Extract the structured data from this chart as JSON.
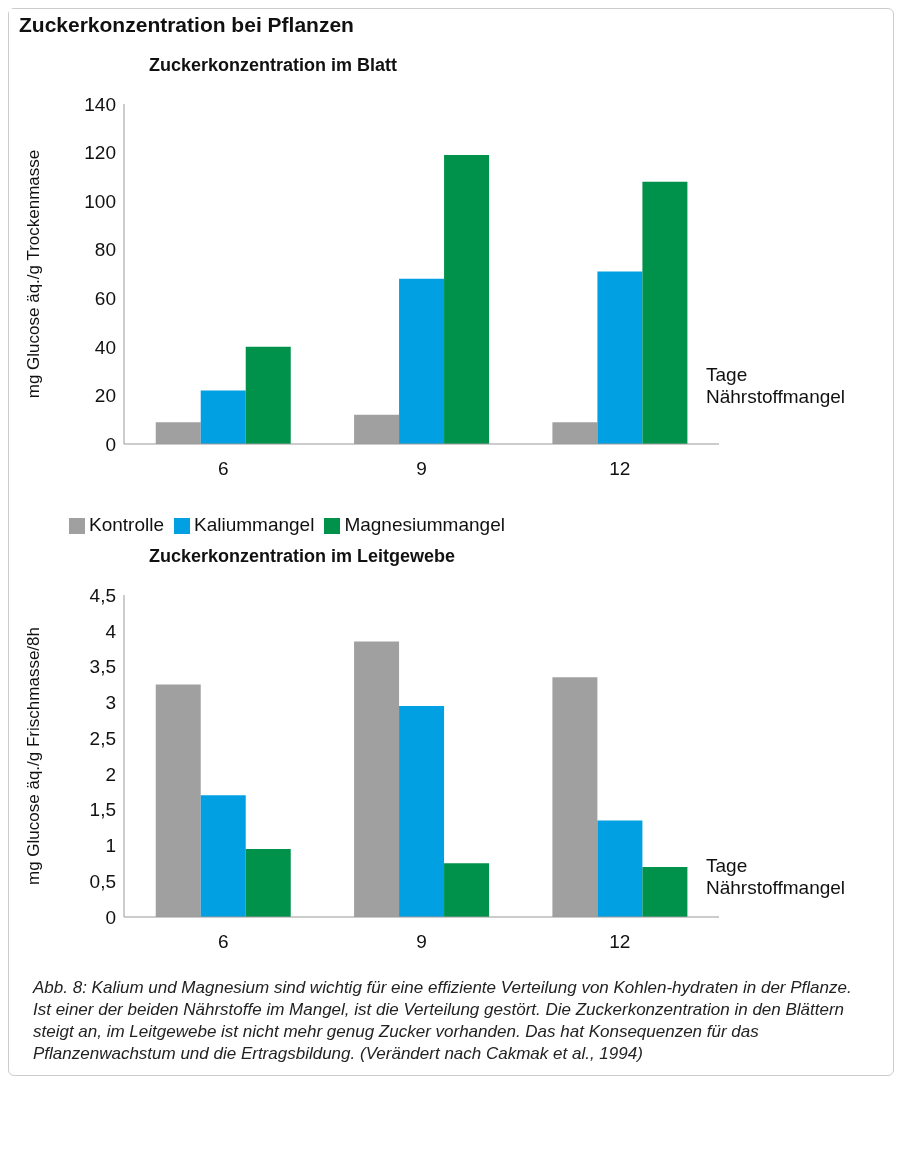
{
  "chart_data": [
    {
      "type": "bar",
      "title": "Zuckerkonzentration im Blatt",
      "annotations": [
        "Zuckerkonzentration bei Pflanzen"
      ],
      "xlabel": "Tage Nährstoffmangel",
      "ylabel": "mg Glucose äq./g Trockenmasse",
      "categories": [
        "6",
        "9",
        "12"
      ],
      "series": [
        {
          "name": "Kontrolle",
          "color": "#a0a0a0",
          "values": [
            9,
            12,
            9
          ]
        },
        {
          "name": "Kaliummangel",
          "color": "#00a0e3",
          "values": [
            22,
            68,
            71
          ]
        },
        {
          "name": "Magnesiummangel",
          "color": "#00924a",
          "values": [
            40,
            119,
            108
          ]
        }
      ],
      "ylim": [
        0,
        140
      ],
      "yticks": [
        0,
        20,
        40,
        60,
        80,
        100,
        120,
        140
      ],
      "legend": "bottom"
    },
    {
      "type": "bar",
      "title": "Zuckerkonzentration im Leitgewebe",
      "annotations": [
        "Abb. 8: Kalium und Magnesium sind wichtig für eine effiziente Verteilung von Kohlen-hydraten in der Pflanze. Ist einer der beiden Nährstoffe im Mangel, ist die Verteilung gestört. Die Zuckerkonzentration in den Blättern steigt an, im Leitgewebe ist nicht mehr genug Zucker vorhanden. Das hat Konsequenzen für das Pflanzenwachstum und die Ertragsbildung. (Verändert nach Cakmak et al., 1994)"
      ],
      "xlabel": "Tage Nährstoffmangel",
      "ylabel": "mg Glucose äq./g Frischmasse/8h",
      "categories": [
        "6",
        "9",
        "12"
      ],
      "series": [
        {
          "color": "#a0a0a0",
          "values": [
            3.25,
            3.85,
            3.35
          ]
        },
        {
          "color": "#00a0e3",
          "values": [
            1.7,
            2.95,
            1.35
          ]
        },
        {
          "color": "#00924a",
          "values": [
            0.95,
            0.75,
            0.7
          ]
        }
      ],
      "ylim": [
        0,
        4.5
      ],
      "yticks": [
        0,
        {
          "value": 0.5,
          "label": "0,5"
        },
        1,
        {
          "value": 1.5,
          "label": "1,5"
        },
        2,
        {
          "value": 2.5,
          "label": "2,5"
        },
        3,
        {
          "value": 3.5,
          "label": "3,5"
        },
        4,
        {
          "value": 4.5,
          "label": "4,5"
        }
      ]
    }
  ]
}
